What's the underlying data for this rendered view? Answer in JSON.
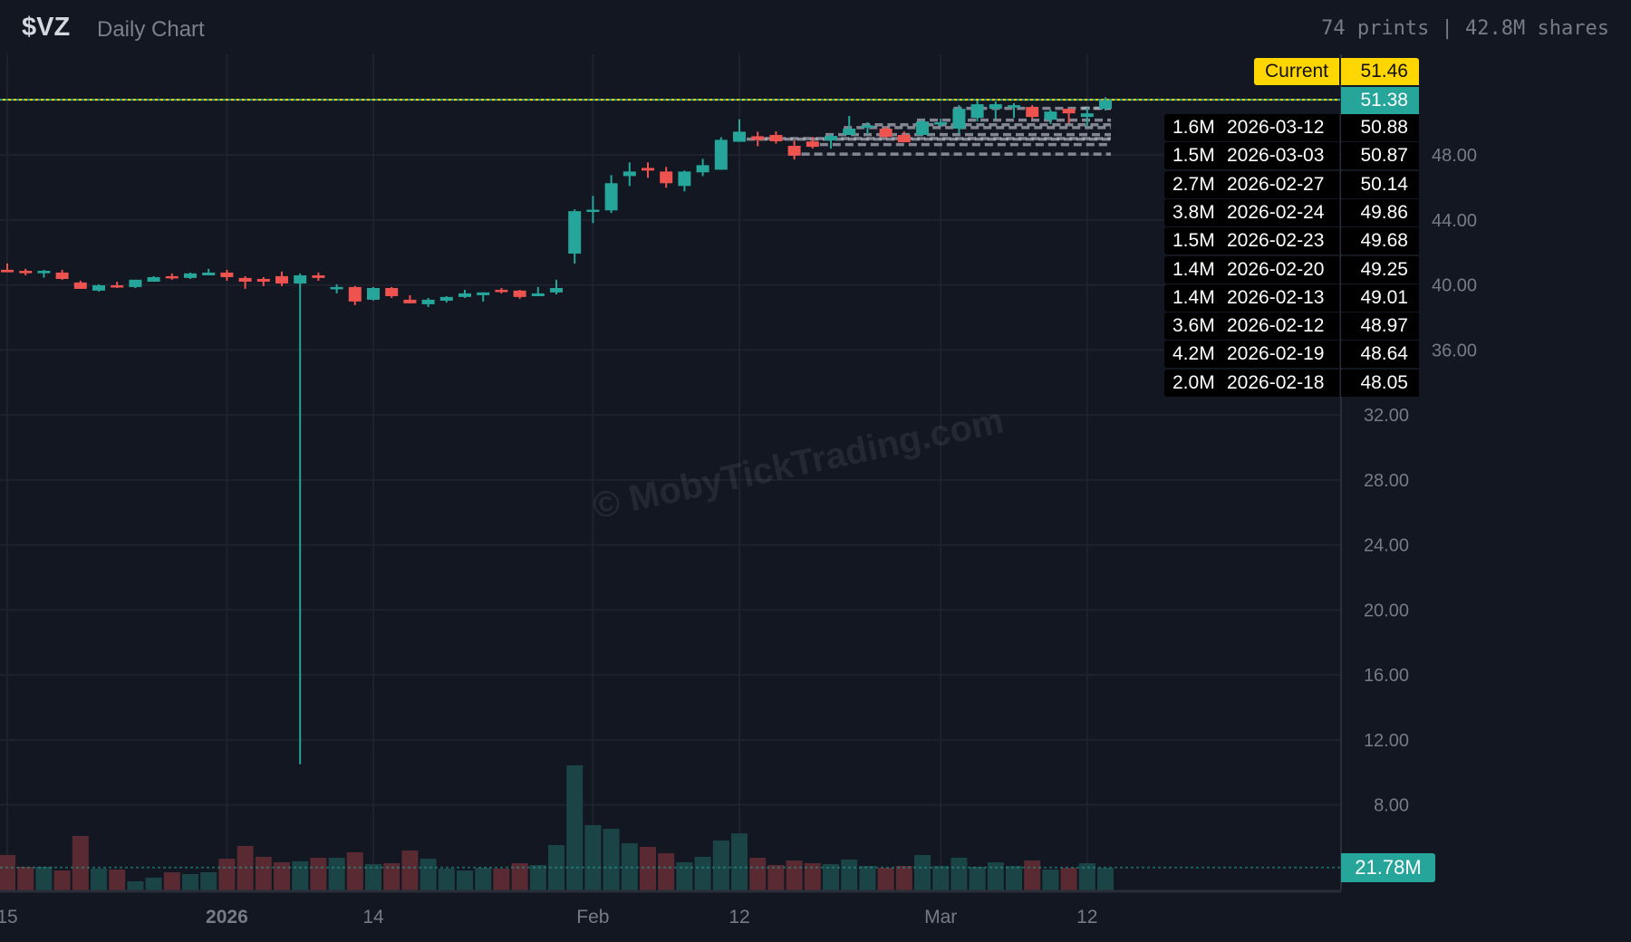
{
  "header": {
    "ticker": "$VZ",
    "subtitle": "Daily Chart",
    "stats": "74 prints | 42.8M shares"
  },
  "watermark": "© MobyTickTrading.com",
  "colors": {
    "up": "#26a69a",
    "down": "#ef5350",
    "current": "#ffd600",
    "background": "#131722",
    "grid": "#1e222d",
    "print_level": "#b2b5be"
  },
  "current": {
    "label": "Current",
    "value": "51.46"
  },
  "last_price": "51.38",
  "avg_volume_label": "21.78M",
  "prints": [
    {
      "size": "1.6M",
      "date": "2026-03-12",
      "price": "50.88"
    },
    {
      "size": "1.5M",
      "date": "2026-03-03",
      "price": "50.87"
    },
    {
      "size": "2.7M",
      "date": "2026-02-27",
      "price": "50.14"
    },
    {
      "size": "3.8M",
      "date": "2026-02-24",
      "price": "49.86"
    },
    {
      "size": "1.5M",
      "date": "2026-02-23",
      "price": "49.68"
    },
    {
      "size": "1.4M",
      "date": "2026-02-20",
      "price": "49.25"
    },
    {
      "size": "1.4M",
      "date": "2026-02-13",
      "price": "49.01"
    },
    {
      "size": "3.6M",
      "date": "2026-02-12",
      "price": "48.97"
    },
    {
      "size": "4.2M",
      "date": "2026-02-19",
      "price": "48.64"
    },
    {
      "size": "2.0M",
      "date": "2026-02-18",
      "price": "48.05"
    }
  ],
  "chart_data": {
    "type": "candlestick",
    "title": "",
    "price_ticks": [
      "8.00",
      "12.00",
      "16.00",
      "20.00",
      "24.00",
      "28.00",
      "32.00",
      "36.00",
      "40.00",
      "44.00",
      "48.00"
    ],
    "x_ticks": [
      {
        "label": "15",
        "date": "2025-12-15"
      },
      {
        "label": "2026",
        "date": "2026-01-02",
        "bold": true
      },
      {
        "label": "14",
        "date": "2026-01-14"
      },
      {
        "label": "Feb",
        "date": "2026-02-02"
      },
      {
        "label": "12",
        "date": "2026-02-12"
      },
      {
        "label": "Mar",
        "date": "2026-03-02"
      },
      {
        "label": "12",
        "date": "2026-03-12"
      }
    ],
    "ylim": [
      6,
      53
    ],
    "grid": true,
    "volume_unit": "M",
    "volume_average": 21.78,
    "current_price": 51.46,
    "candles_columns": [
      "date",
      "open",
      "high",
      "low",
      "close",
      "volume"
    ],
    "candles": [
      [
        "2025-12-15",
        40.93,
        41.32,
        40.78,
        40.78,
        33.6
      ],
      [
        "2025-12-16",
        40.87,
        40.99,
        40.59,
        40.72,
        22.4
      ],
      [
        "2025-12-17",
        40.72,
        40.93,
        40.45,
        40.87,
        22.4
      ],
      [
        "2025-12-18",
        40.76,
        40.93,
        40.32,
        40.37,
        18.9
      ],
      [
        "2025-12-19",
        40.15,
        40.26,
        39.76,
        39.76,
        51.7
      ],
      [
        "2025-12-22",
        39.65,
        40.04,
        39.59,
        39.98,
        20.7
      ],
      [
        "2025-12-23",
        39.98,
        40.2,
        39.81,
        39.87,
        19.8
      ],
      [
        "2025-12-24",
        39.87,
        40.32,
        39.81,
        40.32,
        8.6
      ],
      [
        "2025-12-26",
        40.2,
        40.54,
        40.2,
        40.48,
        12.1
      ],
      [
        "2025-12-29",
        40.54,
        40.71,
        40.32,
        40.43,
        17.2
      ],
      [
        "2025-12-30",
        40.43,
        40.76,
        40.37,
        40.71,
        15.5
      ],
      [
        "2025-12-31",
        40.59,
        40.99,
        40.59,
        40.76,
        17.2
      ],
      [
        "2026-01-02",
        40.76,
        40.93,
        40.26,
        40.48,
        30.1
      ],
      [
        "2026-01-05",
        40.43,
        40.54,
        39.76,
        40.2,
        42.2
      ],
      [
        "2026-01-06",
        40.37,
        40.48,
        39.93,
        40.2,
        31.9
      ],
      [
        "2026-01-07",
        40.54,
        40.82,
        39.93,
        40.09,
        26.7
      ],
      [
        "2026-01-08",
        40.09,
        40.71,
        10.5,
        40.59,
        27.6
      ],
      [
        "2026-01-09",
        40.59,
        40.76,
        40.26,
        40.43,
        31.0
      ],
      [
        "2026-01-12",
        39.76,
        40.04,
        39.48,
        39.87,
        31.0
      ],
      [
        "2026-01-13",
        39.87,
        39.93,
        38.76,
        38.98,
        36.2
      ],
      [
        "2026-01-14",
        39.09,
        39.87,
        39.04,
        39.81,
        25.0
      ],
      [
        "2026-01-15",
        39.81,
        39.87,
        39.2,
        39.31,
        25.8
      ],
      [
        "2026-01-16",
        39.09,
        39.37,
        38.87,
        38.87,
        37.9
      ],
      [
        "2026-01-20",
        38.81,
        39.2,
        38.64,
        39.09,
        30.1
      ],
      [
        "2026-01-21",
        39.03,
        39.31,
        38.92,
        39.26,
        20.7
      ],
      [
        "2026-01-22",
        39.26,
        39.7,
        39.2,
        39.48,
        18.9
      ],
      [
        "2026-01-23",
        39.37,
        39.54,
        38.98,
        39.54,
        21.5
      ],
      [
        "2026-01-26",
        39.7,
        39.81,
        39.48,
        39.59,
        20.7
      ],
      [
        "2026-01-27",
        39.65,
        39.7,
        39.15,
        39.26,
        25.8
      ],
      [
        "2026-01-28",
        39.31,
        39.87,
        39.31,
        39.48,
        24.1
      ],
      [
        "2026-01-29",
        39.54,
        40.32,
        39.42,
        39.81,
        43.1
      ],
      [
        "2026-01-30",
        41.93,
        44.65,
        41.31,
        44.54,
        118.8
      ],
      [
        "2026-02-02",
        44.56,
        45.48,
        43.81,
        44.63,
        62.0
      ],
      [
        "2026-02-03",
        44.59,
        46.76,
        44.43,
        46.26,
        58.5
      ],
      [
        "2026-02-04",
        46.7,
        47.54,
        46.09,
        46.98,
        44.8
      ],
      [
        "2026-02-05",
        47.2,
        47.54,
        46.59,
        47.04,
        41.3
      ],
      [
        "2026-02-06",
        46.98,
        47.26,
        45.98,
        46.26,
        35.3
      ],
      [
        "2026-02-09",
        46.09,
        47.04,
        45.76,
        46.98,
        26.7
      ],
      [
        "2026-02-10",
        46.93,
        47.76,
        46.7,
        47.37,
        31.9
      ],
      [
        "2026-02-11",
        47.09,
        49.09,
        47.09,
        48.93,
        47.4
      ],
      [
        "2026-02-12",
        48.81,
        50.2,
        48.81,
        49.43,
        54.2
      ],
      [
        "2026-02-13",
        49.15,
        49.43,
        48.54,
        48.93,
        31.0
      ],
      [
        "2026-02-17",
        49.23,
        49.45,
        48.7,
        48.84,
        24.1
      ],
      [
        "2026-02-18",
        48.56,
        48.89,
        47.72,
        47.96,
        28.4
      ],
      [
        "2026-02-19",
        48.83,
        49.11,
        48.39,
        48.5,
        25.8
      ],
      [
        "2026-02-20",
        48.89,
        49.28,
        48.39,
        49.17,
        25.0
      ],
      [
        "2026-02-23",
        49.23,
        50.4,
        49.23,
        49.62,
        29.3
      ],
      [
        "2026-02-24",
        49.73,
        50.01,
        49.26,
        49.82,
        23.2
      ],
      [
        "2026-02-25",
        49.62,
        49.73,
        49.06,
        49.11,
        21.5
      ],
      [
        "2026-02-26",
        49.23,
        49.45,
        48.78,
        48.78,
        23.2
      ],
      [
        "2026-02-27",
        49.23,
        50.17,
        49.17,
        50.06,
        33.6
      ],
      [
        "2026-03-02",
        49.9,
        50.23,
        49.73,
        50.01,
        23.2
      ],
      [
        "2026-03-03",
        49.62,
        51.07,
        49.28,
        50.84,
        31.0
      ],
      [
        "2026-03-04",
        50.28,
        51.35,
        50.06,
        51.12,
        22.4
      ],
      [
        "2026-03-05",
        50.84,
        51.29,
        50.23,
        51.12,
        26.7
      ],
      [
        "2026-03-06",
        50.95,
        51.18,
        50.28,
        51.06,
        23.2
      ],
      [
        "2026-03-09",
        50.95,
        51.06,
        50.23,
        50.34,
        28.4
      ],
      [
        "2026-03-10",
        50.17,
        50.79,
        49.9,
        50.67,
        19.8
      ],
      [
        "2026-03-11",
        50.84,
        50.84,
        49.95,
        50.56,
        21.5
      ],
      [
        "2026-03-12",
        50.34,
        50.9,
        49.73,
        50.56,
        25.8
      ],
      [
        "2026-03-13",
        50.84,
        51.55,
        50.73,
        51.38,
        21.5
      ]
    ]
  }
}
